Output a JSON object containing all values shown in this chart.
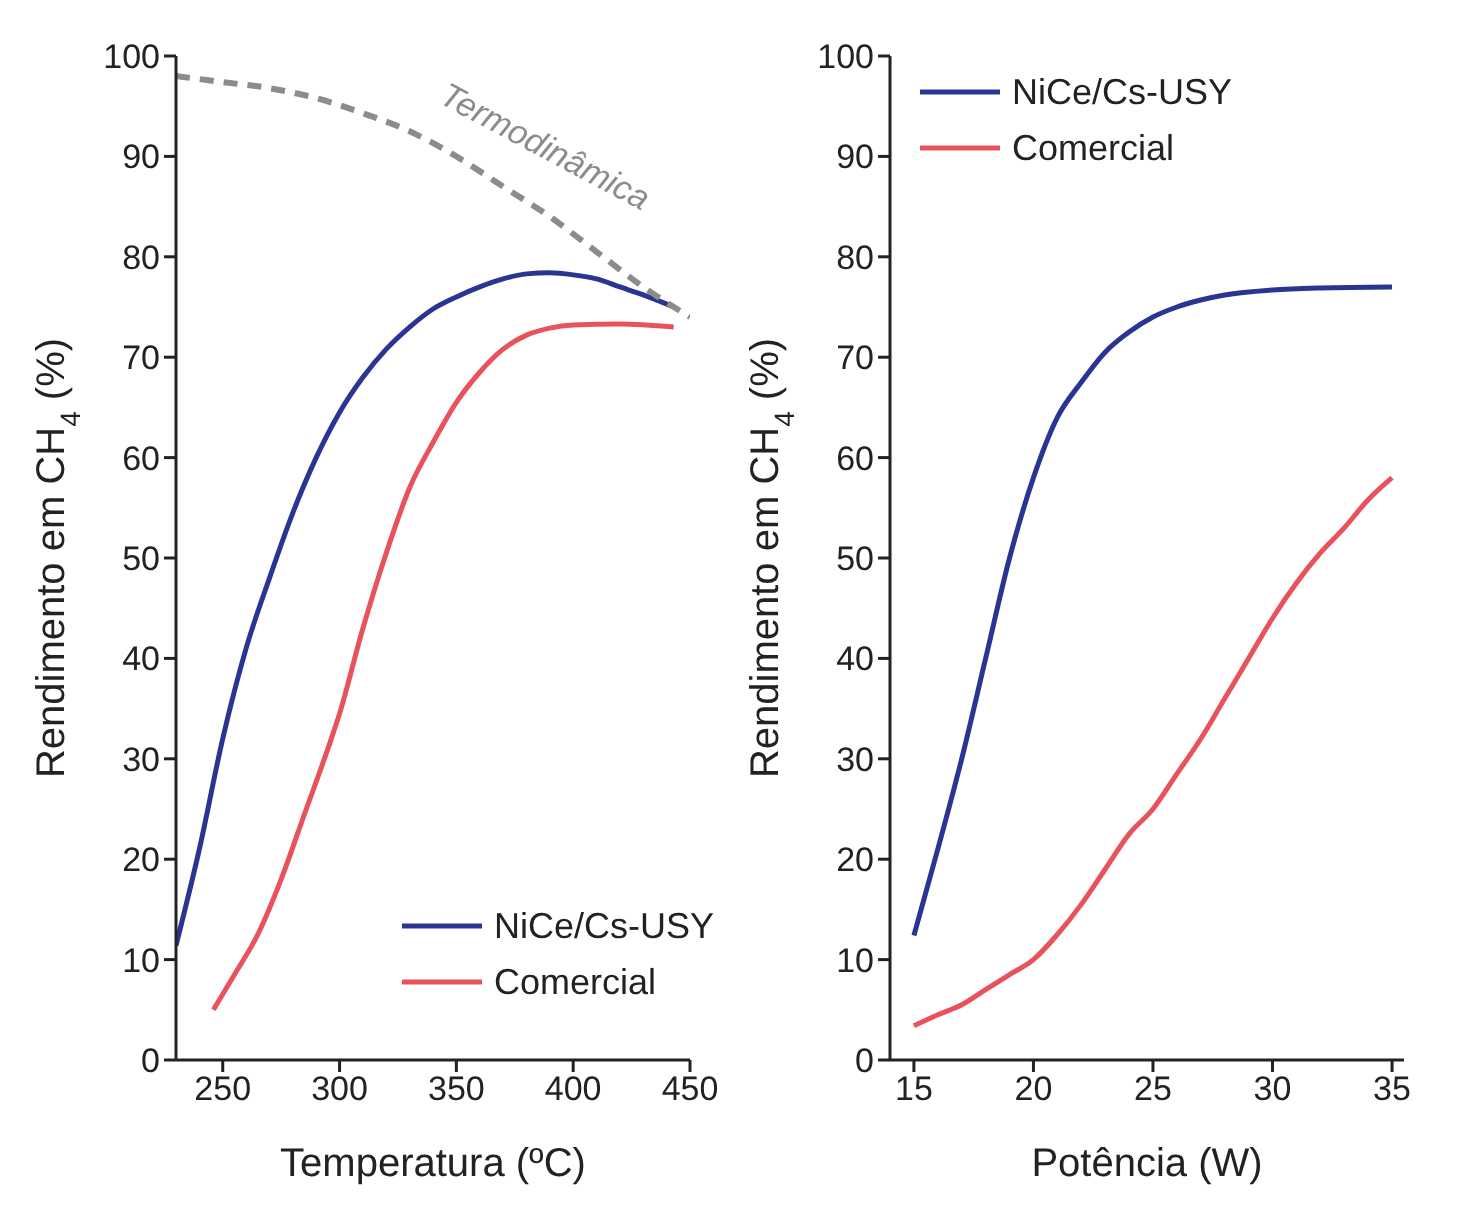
{
  "chart_data": [
    {
      "type": "line",
      "xlabel": "Temperatura (ºC)",
      "ylabel": "Rendimento em CH$_{4}$ (%)",
      "xlim": [
        230,
        450
      ],
      "xticks": [
        250,
        300,
        350,
        400,
        450
      ],
      "ylim": [
        0,
        100
      ],
      "yticks": [
        0,
        10,
        20,
        30,
        40,
        50,
        60,
        70,
        80,
        90,
        100
      ],
      "legend": "bottom right",
      "line_style": "solid",
      "series": [
        {
          "name": "NiCe/Cs-USY",
          "color": "#2a3593",
          "x": [
            230,
            240,
            250,
            260,
            270,
            280,
            290,
            300,
            310,
            320,
            330,
            340,
            350,
            360,
            370,
            380,
            390,
            400,
            410,
            420,
            430,
            443
          ],
          "values": [
            11.4,
            21,
            32,
            41,
            48,
            54.5,
            60,
            64.5,
            68,
            70.8,
            73,
            74.8,
            76,
            77,
            77.8,
            78.3,
            78.4,
            78.2,
            77.8,
            77,
            76.2,
            75
          ]
        },
        {
          "name": "Comercial",
          "color": "#e8525b",
          "x": [
            246,
            255,
            265,
            275,
            285,
            295,
            300,
            310,
            320,
            330,
            340,
            350,
            360,
            370,
            380,
            390,
            400,
            420,
            443
          ],
          "values": [
            5,
            8.5,
            12.5,
            18,
            24.5,
            31,
            34.5,
            43,
            50.5,
            57,
            61.5,
            65.5,
            68.5,
            70.8,
            72.2,
            72.9,
            73.2,
            73.3,
            73
          ]
        },
        {
          "name": "Termodinâmica",
          "color": "#8c8c8c",
          "line_style": "dashed",
          "x": [
            230,
            250,
            270,
            290,
            310,
            330,
            350,
            370,
            390,
            410,
            430,
            450
          ],
          "values": [
            98,
            97.4,
            96.8,
            95.8,
            94.3,
            92.5,
            90,
            87,
            84,
            80.5,
            77,
            74
          ]
        }
      ]
    },
    {
      "type": "line",
      "xlabel": "Potência (W)",
      "ylabel": "Rendimento em CH$_{4}$ (%)",
      "xlim": [
        14,
        35.5
      ],
      "xticks": [
        15,
        20,
        25,
        30,
        35
      ],
      "ylim": [
        0,
        100
      ],
      "yticks": [
        0,
        10,
        20,
        30,
        40,
        50,
        60,
        70,
        80,
        90,
        100
      ],
      "legend": "top left",
      "line_style": "solid",
      "series": [
        {
          "name": "NiCe/Cs-USY",
          "color": "#2a3593",
          "x": [
            15,
            16,
            17,
            18,
            19,
            20,
            21,
            22,
            23,
            24,
            25,
            26,
            27,
            28,
            30,
            32,
            35
          ],
          "values": [
            12.4,
            21,
            30,
            40,
            50,
            58,
            64,
            67.5,
            70.5,
            72.5,
            74,
            75,
            75.7,
            76.2,
            76.7,
            76.9,
            77
          ]
        },
        {
          "name": "Comercial",
          "color": "#e8525b",
          "x": [
            15,
            16,
            17,
            18,
            19,
            20,
            21,
            22,
            23,
            24,
            25,
            26,
            27,
            28,
            29,
            30,
            31,
            32,
            33,
            34,
            35
          ],
          "values": [
            3.4,
            4.5,
            5.5,
            7,
            8.5,
            10,
            12.5,
            15.5,
            19,
            22.5,
            25,
            28.5,
            32,
            36,
            40,
            44,
            47.5,
            50.5,
            53,
            55.8,
            58
          ]
        }
      ]
    }
  ]
}
